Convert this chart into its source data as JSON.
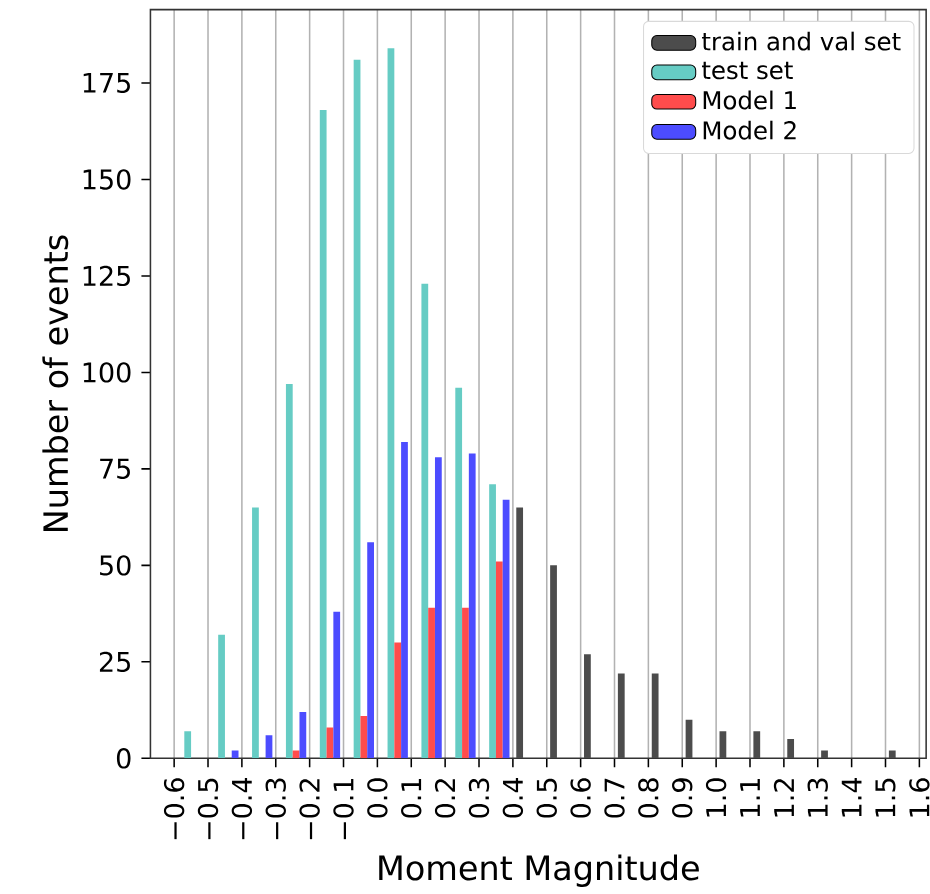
{
  "chart_data": {
    "type": "histogram",
    "xlabel": "Moment Magnitude",
    "ylabel": "Number of events",
    "bins": [
      -0.6,
      -0.5,
      -0.4,
      -0.3,
      -0.2,
      -0.1,
      0.0,
      0.1,
      0.2,
      0.3,
      0.4,
      0.5,
      0.6,
      0.7,
      0.8,
      0.9,
      1.0,
      1.1,
      1.2,
      1.3,
      1.4,
      1.5,
      1.6
    ],
    "series": [
      {
        "name": "train and val set",
        "color": "#4c4c4c",
        "values": [
          0,
          0,
          0,
          0,
          0,
          0,
          0,
          0,
          0,
          0,
          65,
          50,
          27,
          22,
          22,
          10,
          7,
          7,
          5,
          2,
          0,
          2
        ]
      },
      {
        "name": "test set",
        "color": "#66ccc4",
        "values": [
          7,
          32,
          65,
          97,
          168,
          181,
          184,
          123,
          96,
          71,
          0,
          0,
          0,
          0,
          0,
          0,
          0,
          0,
          0,
          0,
          0,
          0
        ]
      },
      {
        "name": "Model 1",
        "color": "#ff4c4c",
        "values": [
          0,
          0,
          0,
          2,
          8,
          11,
          30,
          39,
          39,
          51,
          0,
          0,
          0,
          0,
          0,
          0,
          0,
          0,
          0,
          0,
          0,
          0
        ]
      },
      {
        "name": "Model 2",
        "color": "#4c4cff",
        "values": [
          0,
          2,
          6,
          12,
          38,
          56,
          82,
          78,
          79,
          67,
          0,
          0,
          0,
          0,
          0,
          0,
          0,
          0,
          0,
          0,
          0,
          0
        ]
      }
    ],
    "xlim": [
      -0.67,
      1.62
    ],
    "ylim": [
      0,
      194
    ],
    "xticks": [
      {
        "value": -0.6,
        "label": "−0.6"
      },
      {
        "value": -0.5,
        "label": "−0.5"
      },
      {
        "value": -0.4,
        "label": "−0.4"
      },
      {
        "value": -0.3,
        "label": "−0.3"
      },
      {
        "value": -0.2,
        "label": "−0.2"
      },
      {
        "value": -0.1,
        "label": "−0.1"
      },
      {
        "value": 0,
        "label": "0.0"
      },
      0.1,
      0.2,
      0.3,
      0.4,
      0.5,
      0.6,
      0.7,
      0.8,
      0.9,
      {
        "value": 1,
        "label": "1.0"
      },
      1.1,
      1.2,
      1.3,
      1.4,
      1.5,
      1.6
    ],
    "yticks": [
      0,
      25,
      50,
      75,
      100,
      125,
      150,
      175
    ],
    "grid": "x",
    "legend": "top right"
  }
}
